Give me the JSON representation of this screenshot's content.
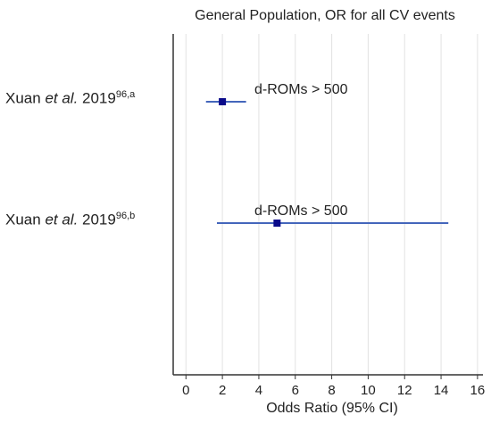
{
  "chart_data": {
    "type": "forest",
    "title": "General Population,  OR for all CV events",
    "xlabel": "Odds Ratio (95% CI)",
    "xlim": [
      -0.7,
      16.3
    ],
    "xticks": [
      0,
      2,
      4,
      6,
      8,
      10,
      12,
      14,
      16
    ],
    "grid": "vertical",
    "rows": [
      {
        "author": "Xuan",
        "etal": "et al.",
        "year": "2019",
        "superscript": "96,a",
        "label": "d-ROMs > 500",
        "or": 2.0,
        "ci_low": 1.1,
        "ci_high": 3.3
      },
      {
        "author": "Xuan",
        "etal": "et al.",
        "year": "2019",
        "superscript": "96,b",
        "label": "d-ROMs > 500",
        "or": 5.0,
        "ci_low": 1.7,
        "ci_high": 14.4
      }
    ]
  },
  "colors": {
    "marker": "#0a0a8a",
    "ci_line": "#4466bb",
    "grid": "#e2e2e2",
    "axis": "#333333"
  }
}
